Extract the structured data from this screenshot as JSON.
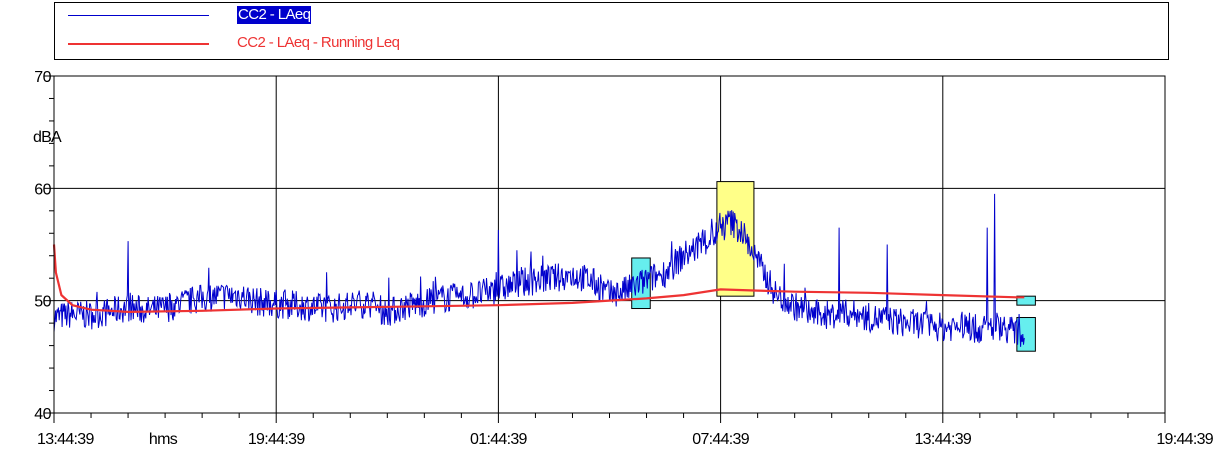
{
  "legend": [
    {
      "label": "CC2 - LAeq",
      "color": "#0000cc",
      "highlight_bg": "#0000cc",
      "highlight_fg": "#ffffff"
    },
    {
      "label": "CC2 - LAeq - Running Leq",
      "color": "#ee3333"
    }
  ],
  "chart_data": {
    "type": "line",
    "ylabel": "dBA",
    "xlabel": "hms",
    "ylim": [
      40,
      70
    ],
    "xlim": [
      "13:44:39",
      "19:44:39 (+30h)"
    ],
    "x_unit_note": "hours elapsed from 13:44:39",
    "y_ticks": [
      "40",
      "60",
      "70"
    ],
    "y_tick_values": [
      40,
      60,
      70
    ],
    "y_mid_label": "50",
    "x_ticks": [
      "13:44:39",
      "19:44:39",
      "01:44:39",
      "07:44:39",
      "13:44:39",
      "19:44:39"
    ],
    "x_tick_values": [
      0,
      6,
      12,
      18,
      24,
      30
    ],
    "grid": true,
    "series": [
      {
        "name": "CC2 - LAeq",
        "color": "#0000cc",
        "x": [
          0,
          0.5,
          1,
          1.5,
          2,
          2.5,
          3,
          3.5,
          4,
          4.5,
          5,
          5.5,
          6,
          6.5,
          7,
          7.5,
          8,
          8.5,
          9,
          9.5,
          10,
          10.5,
          11,
          11.5,
          12,
          12.5,
          13,
          13.5,
          14,
          14.5,
          15,
          15.5,
          16,
          16.5,
          17,
          17.5,
          18,
          18.3,
          18.6,
          19,
          19.5,
          20,
          20.5,
          21,
          21.5,
          22,
          22.5,
          23,
          23.5,
          24,
          24.5,
          25,
          25.5,
          26,
          26.2
        ],
        "y": [
          48.5,
          48.8,
          48.7,
          49.0,
          49.4,
          49.1,
          49.3,
          49.8,
          50.2,
          50.4,
          50.5,
          49.9,
          49.7,
          49.6,
          49.4,
          49.3,
          49.6,
          49.8,
          48.9,
          49.5,
          49.8,
          50.2,
          50.3,
          50.6,
          51.0,
          51.5,
          51.8,
          52.0,
          52.3,
          51.8,
          50.5,
          51.0,
          51.8,
          52.5,
          54.0,
          55.0,
          56.2,
          57.0,
          56.0,
          53.5,
          50.5,
          49.5,
          48.8,
          48.7,
          48.9,
          48.5,
          48.3,
          48.0,
          47.9,
          47.6,
          47.8,
          47.4,
          47.8,
          47.2,
          46.5
        ],
        "spikes": [
          [
            2.0,
            55.3
          ],
          [
            12.0,
            56.3
          ],
          [
            13.2,
            54.0
          ],
          [
            18.2,
            58.0
          ],
          [
            21.2,
            56.5
          ],
          [
            22.5,
            55.0
          ],
          [
            25.2,
            56.5
          ],
          [
            25.4,
            59.5
          ]
        ]
      },
      {
        "name": "CC2 - LAeq - Running Leq",
        "color": "#ee3333",
        "x": [
          0,
          0.05,
          0.2,
          0.5,
          1,
          2,
          4,
          6,
          8,
          10,
          12,
          14,
          16,
          17,
          18,
          19,
          20,
          22,
          24,
          26,
          26.2
        ],
        "y": [
          55.0,
          52.5,
          50.5,
          49.6,
          49.2,
          49.0,
          49.1,
          49.3,
          49.4,
          49.5,
          49.6,
          49.8,
          50.2,
          50.5,
          51.0,
          50.9,
          50.8,
          50.7,
          50.5,
          50.3,
          50.3
        ]
      }
    ],
    "markers": [
      {
        "type": "box",
        "color": "#66eeee",
        "x": [
          15.6,
          16.1
        ],
        "y": [
          49.3,
          53.8
        ]
      },
      {
        "type": "box",
        "color": "#ffff88",
        "x": [
          17.9,
          18.9
        ],
        "y": [
          50.4,
          60.6
        ]
      },
      {
        "type": "box",
        "color": "#66eeee",
        "x": [
          26.0,
          26.5
        ],
        "y": [
          49.6,
          50.4
        ]
      },
      {
        "type": "box",
        "color": "#66eeee",
        "x": [
          26.0,
          26.5
        ],
        "y": [
          45.5,
          48.5
        ]
      }
    ]
  }
}
